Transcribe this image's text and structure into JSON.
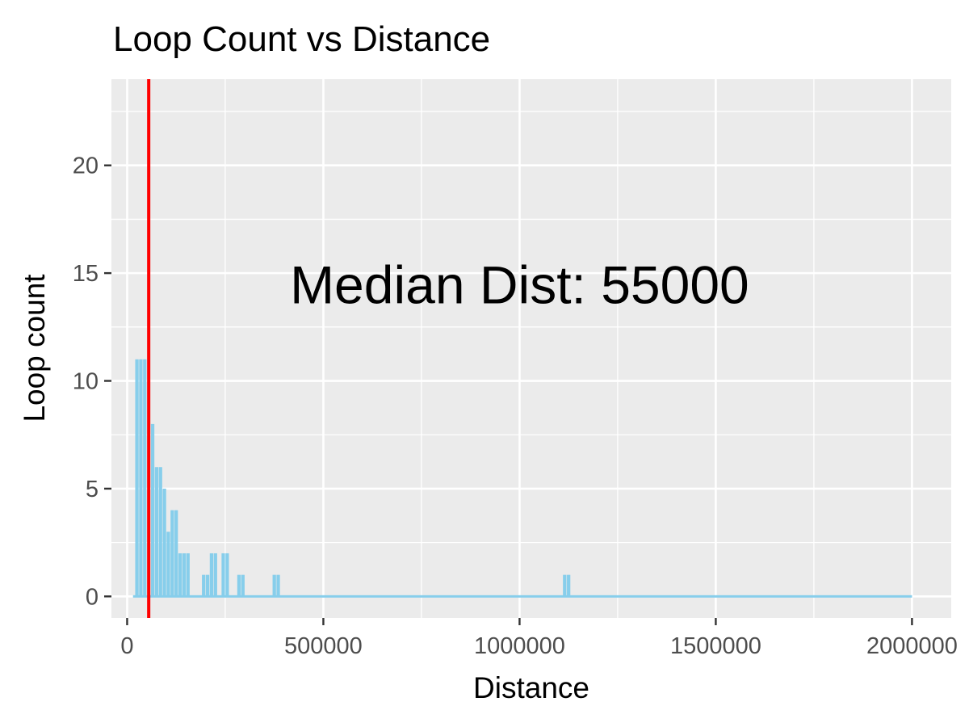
{
  "chart_data": {
    "type": "bar",
    "title": "Loop Count vs Distance",
    "xlabel": "Distance",
    "ylabel": "Loop count",
    "xlim": [
      -40000,
      2100000
    ],
    "ylim": [
      -1,
      24
    ],
    "x_ticks": [
      0,
      500000,
      1000000,
      1500000,
      2000000
    ],
    "x_tick_labels": [
      "0",
      "500000",
      "1000000",
      "1500000",
      "2000000"
    ],
    "y_ticks": [
      0,
      5,
      10,
      15,
      20
    ],
    "y_tick_labels": [
      "0",
      "5",
      "10",
      "15",
      "20"
    ],
    "bin_width": 10000,
    "bins": [
      {
        "x": 25000,
        "count": 11
      },
      {
        "x": 35000,
        "count": 11
      },
      {
        "x": 45000,
        "count": 11
      },
      {
        "x": 55000,
        "count": 0
      },
      {
        "x": 65000,
        "count": 8
      },
      {
        "x": 75000,
        "count": 6
      },
      {
        "x": 85000,
        "count": 6
      },
      {
        "x": 95000,
        "count": 5
      },
      {
        "x": 105000,
        "count": 3
      },
      {
        "x": 115000,
        "count": 4
      },
      {
        "x": 125000,
        "count": 4
      },
      {
        "x": 135000,
        "count": 2
      },
      {
        "x": 145000,
        "count": 2
      },
      {
        "x": 155000,
        "count": 2
      },
      {
        "x": 195000,
        "count": 1
      },
      {
        "x": 205000,
        "count": 1
      },
      {
        "x": 215000,
        "count": 2
      },
      {
        "x": 225000,
        "count": 2
      },
      {
        "x": 245000,
        "count": 2
      },
      {
        "x": 255000,
        "count": 2
      },
      {
        "x": 285000,
        "count": 1
      },
      {
        "x": 295000,
        "count": 1
      },
      {
        "x": 375000,
        "count": 1
      },
      {
        "x": 385000,
        "count": 1
      },
      {
        "x": 1115000,
        "count": 1
      },
      {
        "x": 1125000,
        "count": 1
      }
    ],
    "baseline_range": [
      15000,
      2000000
    ],
    "median_line": {
      "x": 55000,
      "color": "#ff0000"
    },
    "annotation": {
      "text": "Median Dist: 55000",
      "x": 1000000,
      "y": 14.5
    },
    "bar_color": "#87ceeb",
    "grid": true,
    "panel_background": "#ebebeb",
    "grid_color": "#ffffff"
  }
}
